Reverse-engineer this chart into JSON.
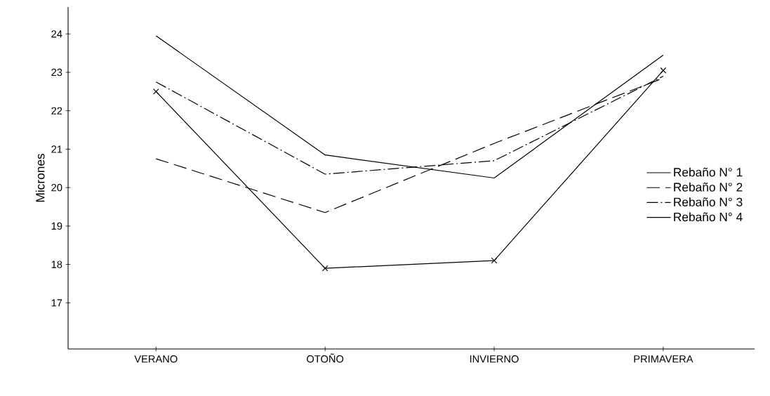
{
  "chart_data": {
    "type": "line",
    "ylabel": "Micrones",
    "categories": [
      "VERANO",
      "OTOÑO",
      "INVIERNO",
      "PRIMAVERA"
    ],
    "series": [
      {
        "name": "Rebaño N° 1",
        "color": "#000000",
        "values": [
          23.95,
          20.85,
          20.25,
          23.45
        ],
        "line_style": "solid"
      },
      {
        "name": "Rebaño N° 2",
        "color": "#000000",
        "values": [
          20.75,
          19.35,
          21.15,
          22.85
        ],
        "line_style": "dashed"
      },
      {
        "name": "Rebaño N° 3",
        "color": "#000000",
        "values": [
          22.75,
          20.35,
          20.7,
          22.9
        ],
        "line_style": "dashdot"
      },
      {
        "name": "Rebaño N° 4",
        "color": "#000000",
        "values": [
          22.5,
          17.9,
          18.1,
          23.05
        ],
        "line_style": "solid",
        "marker": "cross"
      }
    ],
    "ylim": [
      15.8,
      24.7
    ],
    "yticks": [
      17,
      18,
      19,
      20,
      21,
      22,
      23,
      24
    ],
    "grid": false,
    "legend": "right",
    "marker": "none"
  }
}
